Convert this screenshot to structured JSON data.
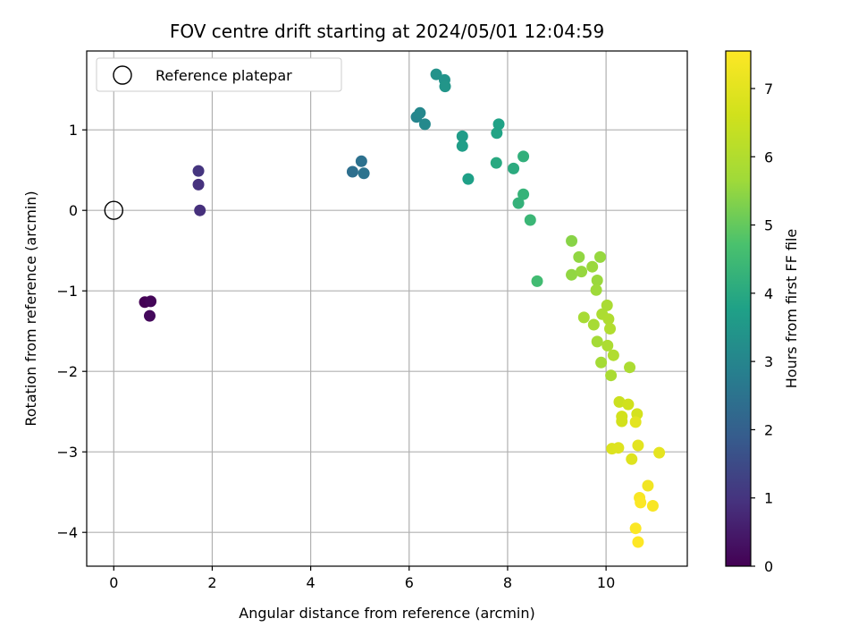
{
  "chart_data": {
    "type": "scatter",
    "title": "FOV centre drift starting at 2024/05/01 12:04:59",
    "xlabel": "Angular distance from reference (arcmin)",
    "ylabel": "Rotation from reference (arcmin)",
    "xlim": [
      -0.55,
      11.65
    ],
    "ylim": [
      -4.42,
      1.98
    ],
    "xticks": [
      0,
      2,
      4,
      6,
      8,
      10
    ],
    "yticks": [
      -4,
      -3,
      -2,
      -1,
      0,
      1
    ],
    "xtick_labels": [
      "0",
      "2",
      "4",
      "6",
      "8",
      "10"
    ],
    "ytick_labels": [
      "−4",
      "−3",
      "−2",
      "−1",
      "0",
      "1"
    ],
    "grid": true,
    "legend": {
      "position": "upper-left",
      "entries": [
        "Reference platepar"
      ]
    },
    "colorbar": {
      "label": "Hours from first FF file",
      "colormap": "viridis",
      "range": [
        0,
        7.55
      ],
      "ticks": [
        0,
        1,
        2,
        3,
        4,
        5,
        6,
        7
      ],
      "tick_labels": [
        "0",
        "1",
        "2",
        "3",
        "4",
        "5",
        "6",
        "7"
      ]
    },
    "reference_point": {
      "name": "Reference platepar",
      "x": 0,
      "y": 0
    },
    "series": [
      {
        "points": [
          {
            "x": 0.63,
            "y": -1.14,
            "c": 0.0
          },
          {
            "x": 0.75,
            "y": -1.13,
            "c": 0.1
          },
          {
            "x": 0.73,
            "y": -1.31,
            "c": 0.15
          },
          {
            "x": 1.75,
            "y": 0.0,
            "c": 0.9
          },
          {
            "x": 1.72,
            "y": 0.32,
            "c": 0.95
          },
          {
            "x": 1.72,
            "y": 0.49,
            "c": 1.0
          },
          {
            "x": 4.85,
            "y": 0.48,
            "c": 2.4
          },
          {
            "x": 5.03,
            "y": 0.61,
            "c": 2.45
          },
          {
            "x": 5.08,
            "y": 0.46,
            "c": 2.5
          },
          {
            "x": 6.15,
            "y": 1.16,
            "c": 3.0
          },
          {
            "x": 6.22,
            "y": 1.21,
            "c": 3.05
          },
          {
            "x": 6.32,
            "y": 1.07,
            "c": 3.1
          },
          {
            "x": 6.55,
            "y": 1.69,
            "c": 3.35
          },
          {
            "x": 6.72,
            "y": 1.62,
            "c": 3.4
          },
          {
            "x": 6.73,
            "y": 1.54,
            "c": 3.45
          },
          {
            "x": 7.08,
            "y": 0.92,
            "c": 3.65
          },
          {
            "x": 7.08,
            "y": 0.8,
            "c": 3.7
          },
          {
            "x": 7.2,
            "y": 0.39,
            "c": 3.75
          },
          {
            "x": 7.78,
            "y": 0.96,
            "c": 3.85
          },
          {
            "x": 7.82,
            "y": 1.07,
            "c": 3.8
          },
          {
            "x": 7.77,
            "y": 0.59,
            "c": 4.0
          },
          {
            "x": 8.12,
            "y": 0.52,
            "c": 4.05
          },
          {
            "x": 8.32,
            "y": 0.67,
            "c": 4.2
          },
          {
            "x": 8.22,
            "y": 0.09,
            "c": 4.25
          },
          {
            "x": 8.32,
            "y": 0.2,
            "c": 4.3
          },
          {
            "x": 8.46,
            "y": -0.12,
            "c": 4.4
          },
          {
            "x": 8.6,
            "y": -0.88,
            "c": 4.55
          },
          {
            "x": 9.3,
            "y": -0.38,
            "c": 5.4
          },
          {
            "x": 9.3,
            "y": -0.8,
            "c": 5.5
          },
          {
            "x": 9.45,
            "y": -0.58,
            "c": 5.5
          },
          {
            "x": 9.5,
            "y": -0.76,
            "c": 5.55
          },
          {
            "x": 9.72,
            "y": -0.7,
            "c": 5.6
          },
          {
            "x": 9.88,
            "y": -0.58,
            "c": 5.55
          },
          {
            "x": 9.82,
            "y": -0.87,
            "c": 5.6
          },
          {
            "x": 9.8,
            "y": -0.99,
            "c": 5.65
          },
          {
            "x": 9.55,
            "y": -1.33,
            "c": 5.8
          },
          {
            "x": 9.75,
            "y": -1.42,
            "c": 5.8
          },
          {
            "x": 9.92,
            "y": -1.29,
            "c": 5.9
          },
          {
            "x": 10.02,
            "y": -1.18,
            "c": 5.85
          },
          {
            "x": 10.05,
            "y": -1.35,
            "c": 5.95
          },
          {
            "x": 10.08,
            "y": -1.47,
            "c": 6.0
          },
          {
            "x": 9.82,
            "y": -1.63,
            "c": 5.75
          },
          {
            "x": 10.03,
            "y": -1.68,
            "c": 5.9
          },
          {
            "x": 10.15,
            "y": -1.8,
            "c": 6.0
          },
          {
            "x": 9.9,
            "y": -1.89,
            "c": 5.75
          },
          {
            "x": 10.1,
            "y": -2.05,
            "c": 5.85
          },
          {
            "x": 10.48,
            "y": -1.95,
            "c": 5.9
          },
          {
            "x": 10.27,
            "y": -2.38,
            "c": 6.5
          },
          {
            "x": 10.45,
            "y": -2.41,
            "c": 6.6
          },
          {
            "x": 10.32,
            "y": -2.56,
            "c": 6.65
          },
          {
            "x": 10.32,
            "y": -2.62,
            "c": 6.65
          },
          {
            "x": 10.63,
            "y": -2.53,
            "c": 6.7
          },
          {
            "x": 10.6,
            "y": -2.63,
            "c": 7.0
          },
          {
            "x": 10.12,
            "y": -2.96,
            "c": 6.85
          },
          {
            "x": 10.25,
            "y": -2.95,
            "c": 6.9
          },
          {
            "x": 10.52,
            "y": -3.09,
            "c": 6.9
          },
          {
            "x": 10.65,
            "y": -2.92,
            "c": 7.0
          },
          {
            "x": 11.08,
            "y": -3.01,
            "c": 7.05
          },
          {
            "x": 10.85,
            "y": -3.42,
            "c": 7.3
          },
          {
            "x": 10.68,
            "y": -3.57,
            "c": 7.45
          },
          {
            "x": 10.7,
            "y": -3.63,
            "c": 7.5
          },
          {
            "x": 10.95,
            "y": -3.67,
            "c": 7.45
          },
          {
            "x": 10.6,
            "y": -3.95,
            "c": 7.5
          },
          {
            "x": 10.65,
            "y": -4.12,
            "c": 7.55
          }
        ]
      }
    ]
  }
}
